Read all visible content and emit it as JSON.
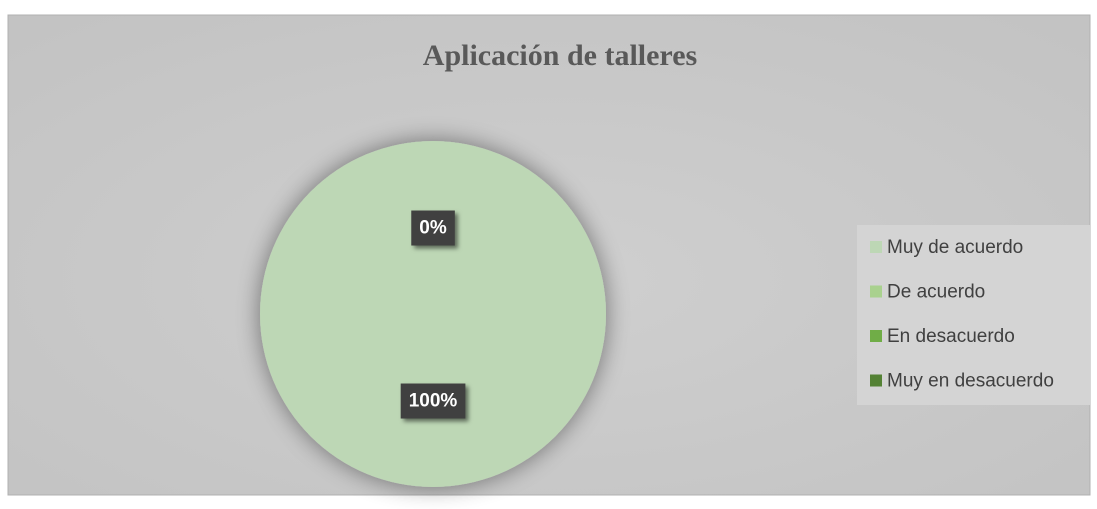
{
  "chart_data": {
    "type": "pie",
    "title": "Aplicación de talleres",
    "categories": [
      "Muy de acuerdo",
      "De acuerdo",
      "En desacuerdo",
      "Muy en desacuerdo"
    ],
    "values": [
      100,
      0,
      0,
      0
    ],
    "value_labels": [
      "100%",
      "0%",
      null,
      null
    ],
    "colors": [
      "#bdd7b5",
      "#a9d18e",
      "#70ad47",
      "#548235"
    ],
    "legend": "right"
  }
}
